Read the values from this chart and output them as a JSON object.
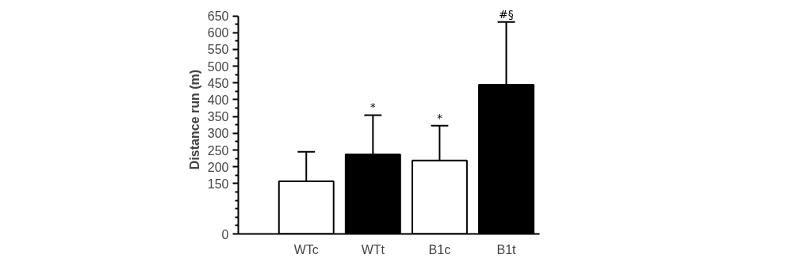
{
  "chart_data": {
    "type": "bar",
    "ylabel": "Distance run (m)",
    "categories": [
      "WTc",
      "WTt",
      "B1c",
      "B1t"
    ],
    "values": [
      157,
      237,
      219,
      445
    ],
    "colors": [
      "#ffffff",
      "#000000",
      "#ffffff",
      "#000000"
    ],
    "errors": [
      [
        157,
        245
      ],
      [
        237,
        354
      ],
      [
        219,
        323
      ],
      [
        445,
        632
      ]
    ],
    "ylim": [
      0,
      650
    ],
    "yticks": [
      0,
      150,
      200,
      250,
      300,
      350,
      400,
      450,
      500,
      550,
      600,
      650
    ],
    "grid": false,
    "annotations": [
      {
        "text": "*",
        "x": "WTt",
        "y": 354
      },
      {
        "text": "*",
        "x": "B1c",
        "y": 323
      },
      {
        "text": "#§",
        "x": "B1t",
        "y": 632
      }
    ]
  }
}
